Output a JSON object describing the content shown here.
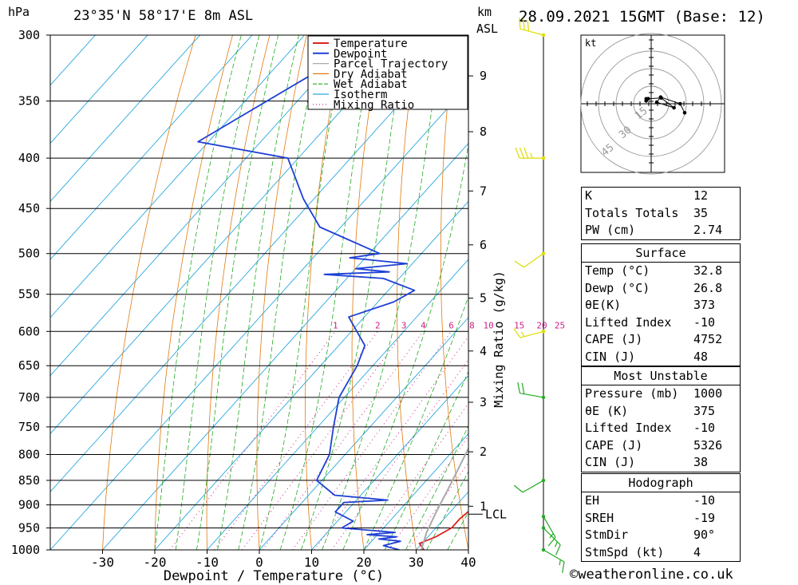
{
  "header": {
    "hpa_unit": "hPa",
    "location": "23°35'N 58°17'E 8m ASL",
    "km_unit": "km",
    "asl_unit": "ASL",
    "datetime": "28.09.2021 15GMT (Base: 12)"
  },
  "copyright": "©weatheronline.co.uk",
  "hodograph": {
    "unit": "kt",
    "ring_labels": [
      "15",
      "30",
      "45"
    ]
  },
  "indices": {
    "rows": [
      {
        "label": "K",
        "value": "12"
      },
      {
        "label": "Totals Totals",
        "value": "35"
      },
      {
        "label": "PW (cm)",
        "value": "2.74"
      }
    ]
  },
  "surface": {
    "title": "Surface",
    "rows": [
      {
        "label": "Temp (°C)",
        "value": "32.8"
      },
      {
        "label": "Dewp (°C)",
        "value": "26.8"
      },
      {
        "label": "θE(K)",
        "value": "373"
      },
      {
        "label": "Lifted Index",
        "value": "-10"
      },
      {
        "label": "CAPE (J)",
        "value": "4752"
      },
      {
        "label": "CIN (J)",
        "value": "48"
      }
    ]
  },
  "most_unstable": {
    "title": "Most Unstable",
    "rows": [
      {
        "label": "Pressure (mb)",
        "value": "1000"
      },
      {
        "label": "θE (K)",
        "value": "375"
      },
      {
        "label": "Lifted Index",
        "value": "-10"
      },
      {
        "label": "CAPE (J)",
        "value": "5326"
      },
      {
        "label": "CIN (J)",
        "value": "38"
      }
    ]
  },
  "hodograph_table": {
    "title": "Hodograph",
    "rows": [
      {
        "label": "EH",
        "value": "-10"
      },
      {
        "label": "SREH",
        "value": "-19"
      },
      {
        "label": "StmDir",
        "value": "90°"
      },
      {
        "label": "StmSpd (kt)",
        "value": "4"
      }
    ]
  },
  "chart_data": {
    "type": "line",
    "title": "",
    "xlabel": "Dewpoint / Temperature (°C)",
    "ylabel": "hPa",
    "mixing_ratio_label": "Mixing Ratio (g/kg)",
    "xlim": [
      -40,
      40
    ],
    "ylim": [
      1000,
      300
    ],
    "x_ticks": [
      -30,
      -20,
      -10,
      0,
      10,
      20,
      30,
      40
    ],
    "pressure_ticks": [
      300,
      350,
      400,
      450,
      500,
      550,
      600,
      650,
      700,
      750,
      800,
      850,
      900,
      950,
      1000
    ],
    "km_ticks": [
      {
        "label": "1",
        "p": 903
      },
      {
        "label": "2",
        "p": 795
      },
      {
        "label": "3",
        "p": 708
      },
      {
        "label": "4",
        "p": 628
      },
      {
        "label": "5",
        "p": 555
      },
      {
        "label": "6",
        "p": 490
      },
      {
        "label": "7",
        "p": 432
      },
      {
        "label": "8",
        "p": 376
      },
      {
        "label": "9",
        "p": 330
      }
    ],
    "lcl": {
      "label": "LCL",
      "p": 920
    },
    "mixing_ratio_values": [
      "1",
      "2",
      "3",
      "4",
      "6",
      "8",
      "10",
      "15",
      "20",
      "25"
    ],
    "legend": {
      "placement": "top",
      "entries": [
        {
          "name": "Temperature",
          "color": "#dd2222"
        },
        {
          "name": "Dewpoint",
          "color": "#1e3fd6"
        },
        {
          "name": "Parcel Trajectory",
          "color": "#aaaaaa"
        },
        {
          "name": "Dry Adiabat",
          "color": "#e07a10"
        },
        {
          "name": "Wet Adiabat",
          "color": "#22aa22"
        },
        {
          "name": "Isotherm",
          "color": "#2aa8e0"
        },
        {
          "name": "Mixing Ratio",
          "color": "#cc2288"
        }
      ]
    },
    "series": [
      {
        "name": "Temperature",
        "color": "#dd2222",
        "points": [
          {
            "p": 1000,
            "t": 31.5
          },
          {
            "p": 985,
            "t": 29.5
          },
          {
            "p": 970,
            "t": 31.5
          },
          {
            "p": 950,
            "t": 33.0
          },
          {
            "p": 930,
            "t": 33.0
          },
          {
            "p": 910,
            "t": 33.5
          },
          {
            "p": 890,
            "t": 33.0
          },
          {
            "p": 870,
            "t": 33.8
          },
          {
            "p": 850,
            "t": 32.0
          },
          {
            "p": 800,
            "t": 28.5
          },
          {
            "p": 750,
            "t": 24.5
          },
          {
            "p": 700,
            "t": 20.5
          },
          {
            "p": 650,
            "t": 16.0
          },
          {
            "p": 600,
            "t": 11.0
          },
          {
            "p": 560,
            "t": 6.5
          },
          {
            "p": 540,
            "t": 4.5
          },
          {
            "p": 520,
            "t": 3.0
          },
          {
            "p": 500,
            "t": 0.0
          },
          {
            "p": 470,
            "t": -3.5
          },
          {
            "p": 440,
            "t": -8.0
          },
          {
            "p": 400,
            "t": -15.0
          },
          {
            "p": 350,
            "t": -24.0
          },
          {
            "p": 330,
            "t": -28.5
          }
        ]
      },
      {
        "name": "Dewpoint",
        "color": "#1e3fd6",
        "points": [
          {
            "p": 1000,
            "t": 26.8
          },
          {
            "p": 990,
            "t": 23.0
          },
          {
            "p": 980,
            "t": 25.5
          },
          {
            "p": 975,
            "t": 21.0
          },
          {
            "p": 970,
            "t": 24.0
          },
          {
            "p": 965,
            "t": 18.0
          },
          {
            "p": 960,
            "t": 23.0
          },
          {
            "p": 950,
            "t": 12.0
          },
          {
            "p": 935,
            "t": 13.0
          },
          {
            "p": 915,
            "t": 8.0
          },
          {
            "p": 895,
            "t": 8.0
          },
          {
            "p": 890,
            "t": 16.0
          },
          {
            "p": 880,
            "t": 5.0
          },
          {
            "p": 850,
            "t": -1.0
          },
          {
            "p": 800,
            "t": -3.0
          },
          {
            "p": 750,
            "t": -7.0
          },
          {
            "p": 700,
            "t": -11.0
          },
          {
            "p": 650,
            "t": -13.0
          },
          {
            "p": 620,
            "t": -15.0
          },
          {
            "p": 580,
            "t": -23.0
          },
          {
            "p": 560,
            "t": -17.0
          },
          {
            "p": 545,
            "t": -15.0
          },
          {
            "p": 530,
            "t": -23.0
          },
          {
            "p": 525,
            "t": -35.0
          },
          {
            "p": 522,
            "t": -23.0
          },
          {
            "p": 518,
            "t": -30.0
          },
          {
            "p": 512,
            "t": -21.0
          },
          {
            "p": 505,
            "t": -33.0
          },
          {
            "p": 500,
            "t": -28.0
          },
          {
            "p": 470,
            "t": -44.0
          },
          {
            "p": 440,
            "t": -52.0
          },
          {
            "p": 400,
            "t": -62.0
          },
          {
            "p": 385,
            "t": -82.0
          },
          {
            "p": 330,
            "t": -72.0
          },
          {
            "p": 300,
            "t": -68.0
          }
        ]
      },
      {
        "name": "Parcel Trajectory",
        "color": "#aaaaaa",
        "points": [
          {
            "p": 1000,
            "t": 31.0
          },
          {
            "p": 960,
            "t": 29.0
          },
          {
            "p": 920,
            "t": 27.5
          },
          {
            "p": 850,
            "t": 25.0
          },
          {
            "p": 800,
            "t": 23.0
          },
          {
            "p": 750,
            "t": 21.0
          },
          {
            "p": 700,
            "t": 18.5
          },
          {
            "p": 650,
            "t": 15.5
          },
          {
            "p": 600,
            "t": 12.0
          },
          {
            "p": 550,
            "t": 8.0
          },
          {
            "p": 500,
            "t": 3.0
          },
          {
            "p": 450,
            "t": -3.0
          },
          {
            "p": 400,
            "t": -10.0
          },
          {
            "p": 370,
            "t": -15.0
          }
        ]
      }
    ],
    "wind": [
      {
        "p": 1000,
        "dir": 120,
        "spd": 5
      },
      {
        "p": 950,
        "dir": 135,
        "spd": 6
      },
      {
        "p": 925,
        "dir": 150,
        "spd": 5
      },
      {
        "p": 850,
        "dir": 240,
        "spd": 10
      },
      {
        "p": 700,
        "dir": 280,
        "spd": 20
      },
      {
        "p": 600,
        "dir": 255,
        "spd": 5
      },
      {
        "p": 500,
        "dir": 235,
        "spd": 10
      },
      {
        "p": 400,
        "dir": 270,
        "spd": 25
      },
      {
        "p": 300,
        "dir": 285,
        "spd": 30
      }
    ]
  }
}
